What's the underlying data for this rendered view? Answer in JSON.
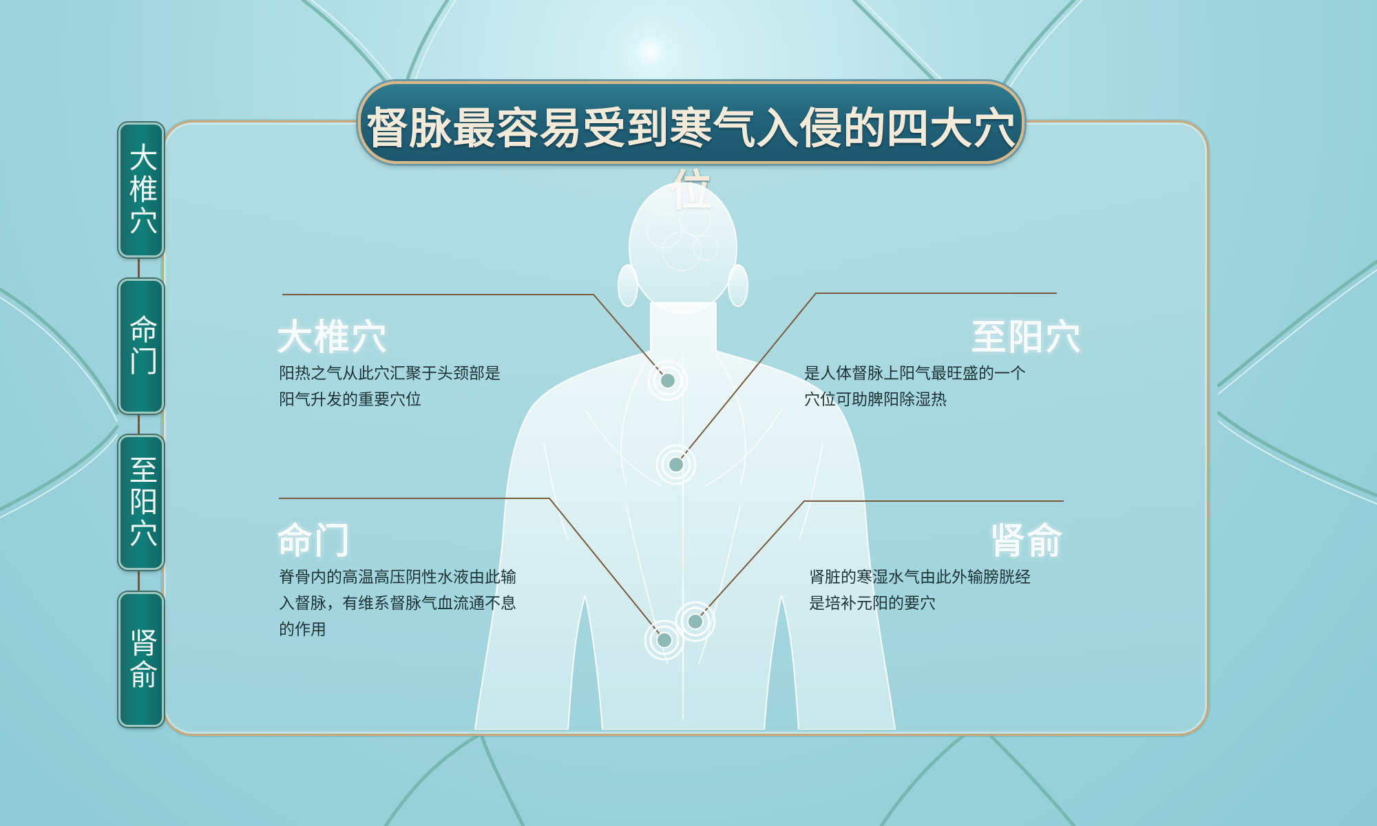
{
  "title": "督脉最容易受到寒气入侵的四大穴位",
  "tabs": [
    {
      "label": "大椎穴"
    },
    {
      "label": "命门"
    },
    {
      "label": "至阳穴"
    },
    {
      "label": "肾俞"
    }
  ],
  "acupoints": {
    "dazhui": {
      "name": "大椎穴",
      "desc_lines": [
        "阳热之气从此穴汇聚于头颈部是",
        "阳气升发的重要穴位"
      ]
    },
    "zhiyang": {
      "name": "至阳穴",
      "desc_lines": [
        "是人体督脉上阳气最旺盛的一个",
        "穴位可助脾阳除湿热"
      ]
    },
    "mingmen": {
      "name": "命门",
      "desc_lines": [
        "脊骨内的高温高压阴性水液由此输",
        "入督脉，有维系督脉气血流通不息",
        "的作用"
      ]
    },
    "shenshu": {
      "name": "肾俞",
      "desc_lines": [
        "肾脏的寒湿水气由此外输膀胱经",
        "是培补元阳的要穴"
      ]
    }
  },
  "colors": {
    "background": "#a5d7df",
    "panel_border": "#caa77a",
    "banner": "#22637a",
    "tab": "#10807b",
    "leader_line": "#7a5a3c"
  },
  "icons": {
    "acupoint_marker": "concentric-ring-icon"
  }
}
